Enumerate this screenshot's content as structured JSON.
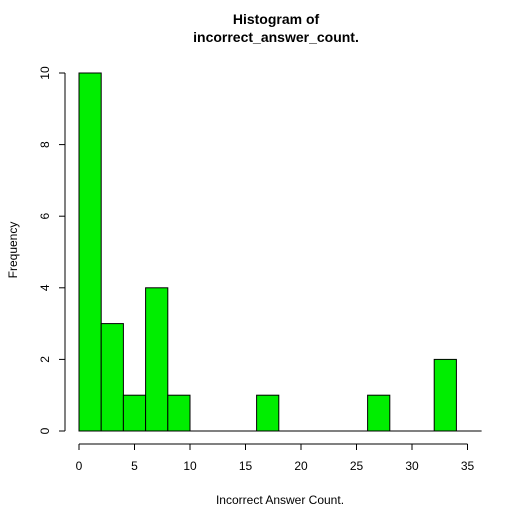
{
  "chart_data": {
    "type": "bar",
    "title": [
      "Histogram of",
      "incorrect_answer_count."
    ],
    "xlabel": "Incorrect Answer Count.",
    "ylabel": "Frequency",
    "bin_width": 2,
    "bins": [
      {
        "start": 0,
        "end": 2,
        "count": 10
      },
      {
        "start": 2,
        "end": 4,
        "count": 3
      },
      {
        "start": 4,
        "end": 6,
        "count": 1
      },
      {
        "start": 6,
        "end": 8,
        "count": 4
      },
      {
        "start": 8,
        "end": 10,
        "count": 1
      },
      {
        "start": 10,
        "end": 12,
        "count": 0
      },
      {
        "start": 12,
        "end": 14,
        "count": 0
      },
      {
        "start": 14,
        "end": 16,
        "count": 0
      },
      {
        "start": 16,
        "end": 18,
        "count": 1
      },
      {
        "start": 18,
        "end": 20,
        "count": 0
      },
      {
        "start": 20,
        "end": 22,
        "count": 0
      },
      {
        "start": 22,
        "end": 24,
        "count": 0
      },
      {
        "start": 24,
        "end": 26,
        "count": 0
      },
      {
        "start": 26,
        "end": 28,
        "count": 1
      },
      {
        "start": 28,
        "end": 30,
        "count": 0
      },
      {
        "start": 30,
        "end": 32,
        "count": 0
      },
      {
        "start": 32,
        "end": 34,
        "count": 2
      },
      {
        "start": 34,
        "end": 36,
        "count": 0
      }
    ],
    "xlim": [
      0,
      36
    ],
    "ylim": [
      0,
      10
    ],
    "x_ticks": [
      "0",
      "5",
      "10",
      "15",
      "20",
      "25",
      "30",
      "35"
    ],
    "y_ticks": [
      "0",
      "2",
      "4",
      "6",
      "8",
      "10"
    ],
    "bar_color": "#00ee00",
    "border_color": "#000000",
    "grid": false,
    "legend": "none"
  }
}
